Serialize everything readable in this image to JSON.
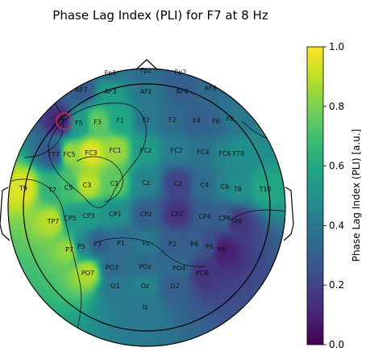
{
  "chart_data": {
    "type": "heatmap",
    "title": "Phase Lag Index (PLI) for F7 at 8 Hz",
    "colorbar": {
      "label": "Phase Lag Index (PLI) [a.u.]",
      "range": [
        0.0,
        1.0
      ],
      "ticks": [
        "0.0",
        "0.2",
        "0.4",
        "0.6",
        "0.8",
        "1.0"
      ],
      "colormap": "viridis"
    },
    "seed_electrode": "F7",
    "seed_marker_color": "#e8283c",
    "electrodes": [
      {
        "name": "Fp1",
        "pli": 0.38
      },
      {
        "name": "Fpz",
        "pli": 0.35
      },
      {
        "name": "Fp2",
        "pli": 0.3
      },
      {
        "name": "AF7",
        "pli": 0.28
      },
      {
        "name": "AF3",
        "pli": 0.55
      },
      {
        "name": "AFz",
        "pli": 0.4
      },
      {
        "name": "AF4",
        "pli": 0.3
      },
      {
        "name": "AF8",
        "pli": 0.35
      },
      {
        "name": "F7",
        "pli": 0.1
      },
      {
        "name": "F5",
        "pli": 0.55
      },
      {
        "name": "F3",
        "pli": 0.75
      },
      {
        "name": "F1",
        "pli": 0.6
      },
      {
        "name": "Fz",
        "pli": 0.4
      },
      {
        "name": "F2",
        "pli": 0.35
      },
      {
        "name": "F4",
        "pli": 0.3
      },
      {
        "name": "F6",
        "pli": 0.32
      },
      {
        "name": "F8",
        "pli": 0.4
      },
      {
        "name": "FT7",
        "pli": 0.25
      },
      {
        "name": "FC5",
        "pli": 0.85
      },
      {
        "name": "FC3",
        "pli": 0.95
      },
      {
        "name": "FC1",
        "pli": 0.85
      },
      {
        "name": "FCz",
        "pli": 0.55
      },
      {
        "name": "FC2",
        "pli": 0.42
      },
      {
        "name": "FC4",
        "pli": 0.38
      },
      {
        "name": "FC6",
        "pli": 0.45
      },
      {
        "name": "FT8",
        "pli": 0.5
      },
      {
        "name": "T9",
        "pli": 0.95
      },
      {
        "name": "T7",
        "pli": 0.65
      },
      {
        "name": "C5",
        "pli": 0.7
      },
      {
        "name": "C3",
        "pli": 0.9
      },
      {
        "name": "C1",
        "pli": 0.75
      },
      {
        "name": "Cz",
        "pli": 0.45
      },
      {
        "name": "C2",
        "pli": 0.2
      },
      {
        "name": "C4",
        "pli": 0.35
      },
      {
        "name": "C6",
        "pli": 0.45
      },
      {
        "name": "T8",
        "pli": 0.5
      },
      {
        "name": "T10",
        "pli": 0.6
      },
      {
        "name": "TP7",
        "pli": 0.9
      },
      {
        "name": "CP5",
        "pli": 0.55
      },
      {
        "name": "CP3",
        "pli": 0.55
      },
      {
        "name": "CP1",
        "pli": 0.5
      },
      {
        "name": "CPz",
        "pli": 0.3
      },
      {
        "name": "CP2",
        "pli": 0.15
      },
      {
        "name": "CP4",
        "pli": 0.3
      },
      {
        "name": "CP6",
        "pli": 0.3
      },
      {
        "name": "TP8",
        "pli": 0.15
      },
      {
        "name": "P7",
        "pli": 0.85
      },
      {
        "name": "P5",
        "pli": 0.45
      },
      {
        "name": "P3",
        "pli": 0.3
      },
      {
        "name": "P1",
        "pli": 0.35
      },
      {
        "name": "Pz",
        "pli": 0.4
      },
      {
        "name": "P2",
        "pli": 0.3
      },
      {
        "name": "P4",
        "pli": 0.3
      },
      {
        "name": "P6",
        "pli": 0.25
      },
      {
        "name": "P8",
        "pli": 0.08
      },
      {
        "name": "PO7",
        "pli": 0.88
      },
      {
        "name": "PO3",
        "pli": 0.35
      },
      {
        "name": "POz",
        "pli": 0.35
      },
      {
        "name": "PO4",
        "pli": 0.35
      },
      {
        "name": "PO8",
        "pli": 0.15
      },
      {
        "name": "O1",
        "pli": 0.4
      },
      {
        "name": "Oz",
        "pli": 0.45
      },
      {
        "name": "O2",
        "pli": 0.3
      },
      {
        "name": "Iz",
        "pli": 0.4
      }
    ]
  }
}
